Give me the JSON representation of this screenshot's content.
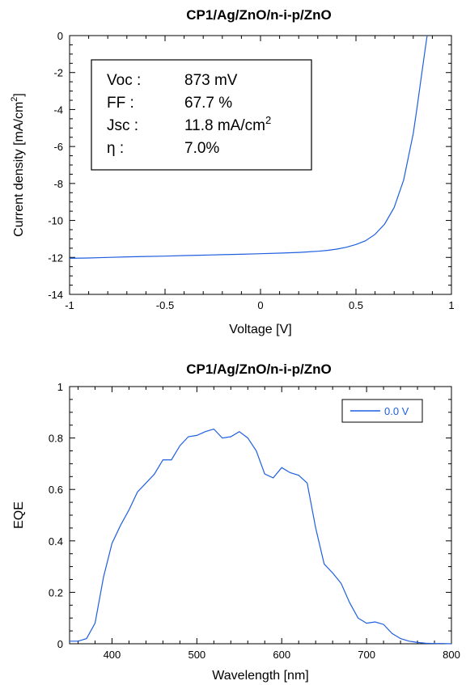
{
  "chart_data": [
    {
      "type": "line",
      "title": "CP1/Ag/ZnO/n-i-p/ZnO",
      "xlabel": "Voltage [V]",
      "ylabel": "Current density [mA/cm",
      "ylabel_sup": "2",
      "ylabel_tail": "]",
      "xlim": [
        -1,
        1
      ],
      "ylim": [
        -14,
        0
      ],
      "xticks": [
        -1,
        -0.5,
        0,
        0.5,
        1
      ],
      "xtick_labels": [
        "-1",
        "-0.5",
        "0",
        "0.5",
        "1"
      ],
      "yticks": [
        -14,
        -12,
        -10,
        -8,
        -6,
        -4,
        -2,
        0
      ],
      "ytick_labels": [
        "-14",
        "-12",
        "-10",
        "-8",
        "-6",
        "-4",
        "-2",
        "0"
      ],
      "grid": false,
      "line_color": "#1f5fe0",
      "stats": [
        {
          "key": "Voc :",
          "value": "873 mV",
          "sup": ""
        },
        {
          "key": "FF :",
          "value": "67.7 %",
          "sup": ""
        },
        {
          "key": "Jsc :",
          "value": "11.8 mA/cm",
          "sup": "2"
        },
        {
          "key": "η :",
          "value": "7.0%",
          "sup": ""
        }
      ],
      "series": [
        {
          "x": [
            -1.0,
            -0.9,
            -0.8,
            -0.7,
            -0.6,
            -0.5,
            -0.4,
            -0.3,
            -0.2,
            -0.1,
            0.0,
            0.1,
            0.2,
            0.3,
            0.35,
            0.4,
            0.45,
            0.5,
            0.55,
            0.6,
            0.65,
            0.7,
            0.75,
            0.8,
            0.82,
            0.84,
            0.86,
            0.87,
            0.873
          ],
          "y": [
            -12.05,
            -12.03,
            -12.0,
            -11.97,
            -11.95,
            -11.93,
            -11.9,
            -11.88,
            -11.85,
            -11.83,
            -11.8,
            -11.77,
            -11.73,
            -11.67,
            -11.62,
            -11.55,
            -11.45,
            -11.3,
            -11.1,
            -10.75,
            -10.2,
            -9.3,
            -7.8,
            -5.3,
            -3.9,
            -2.4,
            -0.9,
            -0.2,
            0.0
          ]
        }
      ]
    },
    {
      "type": "line",
      "title": "CP1/Ag/ZnO/n-i-p/ZnO",
      "xlabel": "Wavelength [nm]",
      "ylabel": "EQE",
      "xlim": [
        350,
        800
      ],
      "ylim": [
        0,
        1
      ],
      "xticks": [
        400,
        500,
        600,
        700,
        800
      ],
      "xtick_labels": [
        "400",
        "500",
        "600",
        "700",
        "800"
      ],
      "yticks": [
        0,
        0.2,
        0.4,
        0.6,
        0.8,
        1
      ],
      "ytick_labels": [
        "0",
        "0.2",
        "0.4",
        "0.6",
        "0.8",
        "1"
      ],
      "grid": false,
      "legend": "top-right",
      "line_color": "#1f5fe0",
      "series": [
        {
          "name": "0.0 V",
          "x": [
            350,
            360,
            370,
            380,
            390,
            400,
            410,
            420,
            430,
            440,
            450,
            460,
            470,
            480,
            490,
            500,
            510,
            520,
            530,
            540,
            550,
            560,
            570,
            580,
            590,
            600,
            610,
            620,
            630,
            640,
            650,
            660,
            670,
            680,
            690,
            700,
            710,
            720,
            730,
            740,
            750,
            760,
            770,
            780,
            790,
            800
          ],
          "y": [
            0.01,
            0.01,
            0.02,
            0.08,
            0.26,
            0.39,
            0.46,
            0.52,
            0.59,
            0.625,
            0.66,
            0.715,
            0.715,
            0.77,
            0.805,
            0.81,
            0.825,
            0.835,
            0.8,
            0.805,
            0.825,
            0.8,
            0.75,
            0.66,
            0.645,
            0.685,
            0.665,
            0.655,
            0.625,
            0.45,
            0.31,
            0.275,
            0.235,
            0.16,
            0.1,
            0.08,
            0.085,
            0.075,
            0.04,
            0.02,
            0.01,
            0.005,
            0.002,
            0.001,
            0.001,
            0.0
          ]
        }
      ]
    }
  ]
}
